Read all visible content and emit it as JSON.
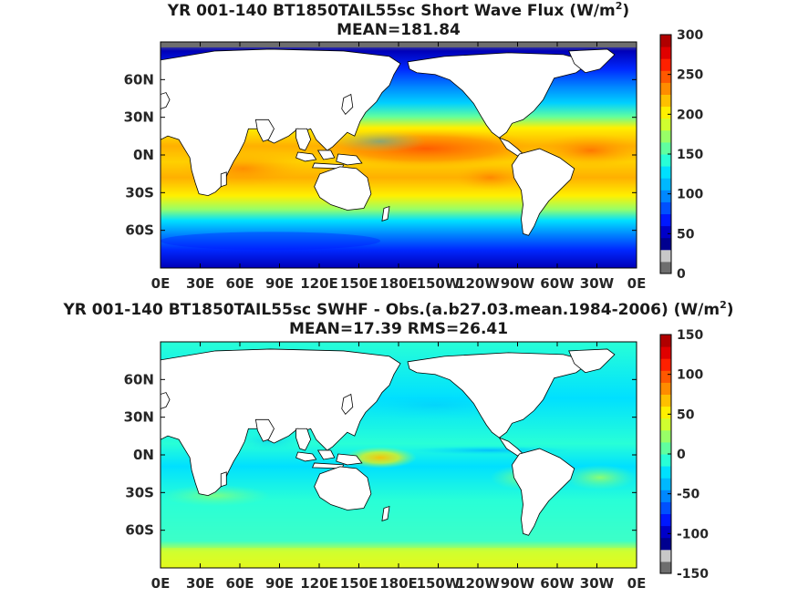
{
  "panels": [
    {
      "id": "top",
      "title_main": "YR 001-140 BT1850TAIL55sc  Short Wave Flux (W/m",
      "title_sup": "2",
      "title_end": ")",
      "subtitle": "MEAN=181.84",
      "lat_labels": [
        "60N",
        "30N",
        "0N",
        "30S",
        "60S"
      ],
      "lon_labels": [
        "0E",
        "30E",
        "60E",
        "90E",
        "120E",
        "150E",
        "180E",
        "150W",
        "120W",
        "90W",
        "60W",
        "30W",
        "0E"
      ],
      "colorbar": {
        "min": 0,
        "max": 300,
        "tick_labels": [
          "300",
          "250",
          "200",
          "150",
          "100",
          "50",
          "0"
        ],
        "colors": [
          "#6e6e6e",
          "#c8c8c8",
          "#00008f",
          "#0000c8",
          "#0018ff",
          "#0050ff",
          "#0088ff",
          "#00b8ff",
          "#00e0ff",
          "#28ffd7",
          "#60ff9f",
          "#98ff67",
          "#d0ff2f",
          "#fff000",
          "#ffc000",
          "#ff8c00",
          "#ff5800",
          "#ff2000",
          "#e00000",
          "#b00000"
        ]
      }
    },
    {
      "id": "bottom",
      "title_main": "YR 001-140 BT1850TAIL55sc SWHF - Obs.(a.b27.03.mean.1984-2006) (W/m",
      "title_sup": "2",
      "title_end": ")",
      "subtitle": "MEAN=17.39 RMS=26.41",
      "lat_labels": [
        "60N",
        "30N",
        "0N",
        "30S",
        "60S"
      ],
      "lon_labels": [
        "0E",
        "30E",
        "60E",
        "90E",
        "120E",
        "150E",
        "180E",
        "150W",
        "120W",
        "90W",
        "60W",
        "30W",
        "0E"
      ],
      "colorbar": {
        "min": -150,
        "max": 150,
        "tick_labels": [
          "150",
          "100",
          "50",
          "0",
          "-50",
          "-100",
          "-150"
        ],
        "colors": [
          "#6e6e6e",
          "#c8c8c8",
          "#00008f",
          "#0000c8",
          "#0018ff",
          "#0050ff",
          "#0088ff",
          "#00b8ff",
          "#00e0ff",
          "#28ffd7",
          "#60ff9f",
          "#98ff67",
          "#d0ff2f",
          "#fff000",
          "#ffc000",
          "#ff8c00",
          "#ff5800",
          "#ff2000",
          "#e00000",
          "#b00000"
        ]
      }
    }
  ]
}
